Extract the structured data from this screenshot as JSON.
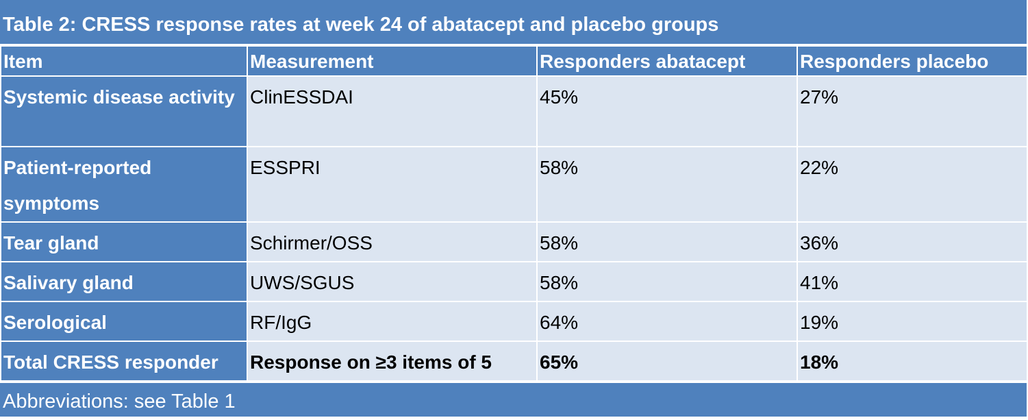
{
  "header": {
    "title": "Table 2: CRESS response rates at week 24 of abatacept and placebo groups"
  },
  "table": {
    "columns": [
      "Item",
      "Measurement",
      "Responders abatacept",
      "Responders placebo"
    ],
    "rows": [
      [
        "Systemic disease activity",
        "ClinESSDAI",
        "45%",
        "27%"
      ],
      [
        "Patient-reported symptoms",
        "ESSPRI",
        "58%",
        "22%"
      ],
      [
        "Tear gland",
        "Schirmer/OSS",
        "58%",
        "36%"
      ],
      [
        "Salivary gland",
        "UWS/SGUS",
        "58%",
        "41%"
      ],
      [
        "Serological",
        "RF/IgG",
        "64%",
        "19%"
      ],
      [
        "Total CRESS responder",
        "Response on ≥3 items of 5",
        "65%",
        "18%"
      ]
    ]
  },
  "footer": {
    "note": "Abbreviations: see Table 1"
  }
}
